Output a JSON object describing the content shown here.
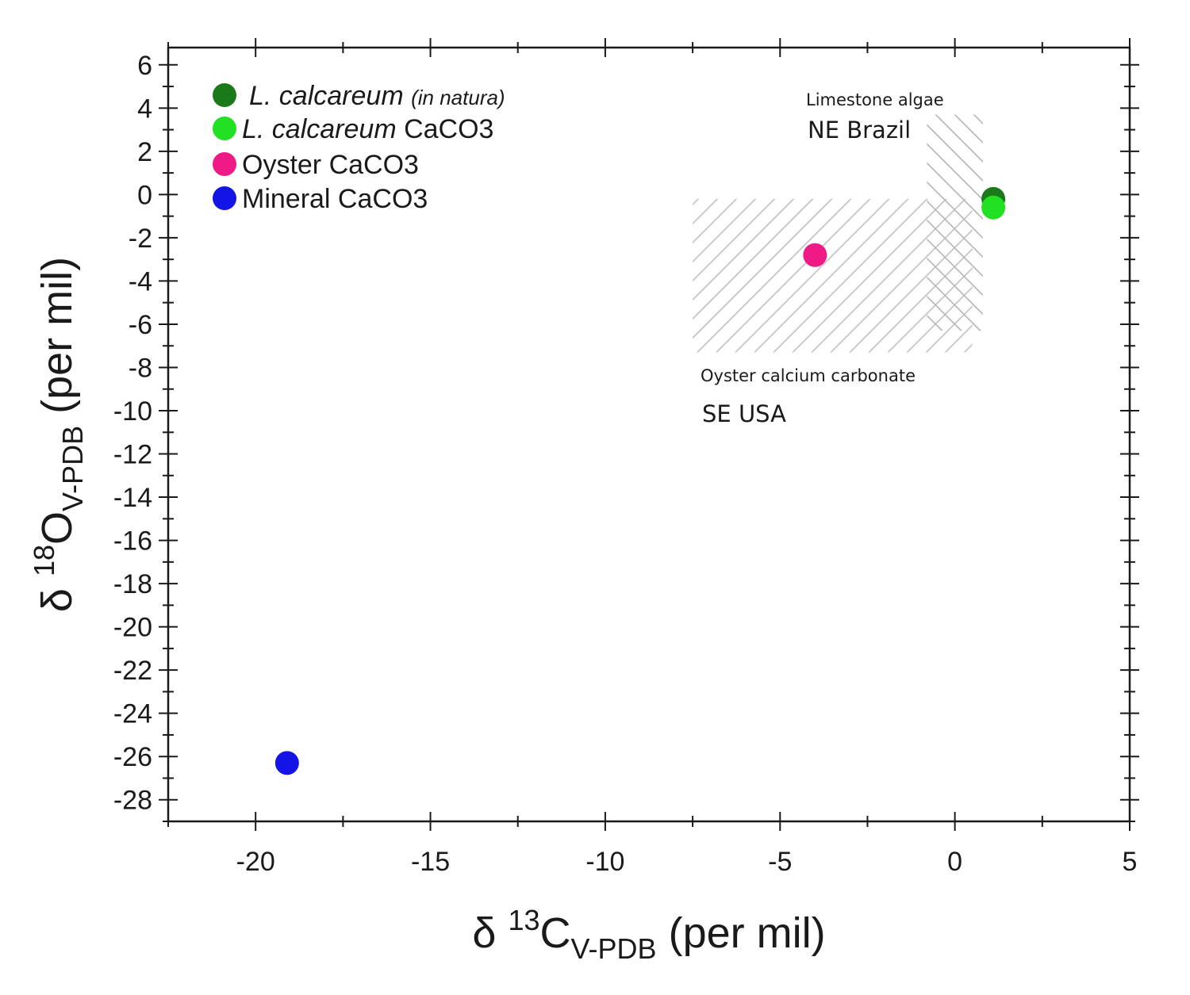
{
  "chart_data": {
    "type": "scatter",
    "xlabel": {
      "prefix": "δ ",
      "sup": "13",
      "main": "C",
      "sub": "V-PDB",
      "suffix": " (per mil)"
    },
    "ylabel": {
      "prefix": "δ ",
      "sup": "18",
      "main": "O",
      "sub": "V-PDB",
      "suffix": " (per mil)"
    },
    "xlim": [
      -22.5,
      5
    ],
    "ylim": [
      -29,
      6.8
    ],
    "x_ticks": [
      -20,
      -15,
      -10,
      -5,
      0,
      5
    ],
    "x_tick_labels": [
      "-20",
      "-15",
      "-10",
      "-5",
      "0",
      "5"
    ],
    "y_ticks": [
      6,
      4,
      2,
      0,
      -2,
      -4,
      -6,
      -8,
      -10,
      -12,
      -14,
      -16,
      -18,
      -20,
      -22,
      -24,
      -26,
      -28
    ],
    "y_tick_labels": [
      "6",
      "4",
      "2",
      "0",
      "-2",
      "-4",
      "-6",
      "-8",
      "-10",
      "-12",
      "-14",
      "-16",
      "-18",
      "-20",
      "-22",
      "-24",
      "-26",
      "-28"
    ],
    "grid": false,
    "legend_position": "top-left",
    "series": [
      {
        "name": "L. calcareum",
        "name_note": "(in natura)",
        "italic_name": true,
        "suffix": "",
        "color": "#1a7a1a",
        "points": [
          {
            "x": 1.1,
            "y": -0.2
          }
        ]
      },
      {
        "name": "L. calcareum",
        "name_note": "",
        "italic_name": true,
        "suffix": " CaCO3",
        "color": "#22e022",
        "points": [
          {
            "x": 1.1,
            "y": -0.6
          }
        ]
      },
      {
        "name": "Oyster CaCO3",
        "name_note": "",
        "italic_name": false,
        "suffix": "",
        "color": "#f01a86",
        "points": [
          {
            "x": -4.0,
            "y": -2.8
          }
        ]
      },
      {
        "name": "Mineral CaCO3",
        "name_note": "",
        "italic_name": false,
        "suffix": "",
        "color": "#1414e6",
        "points": [
          {
            "x": -19.1,
            "y": -26.3
          }
        ]
      }
    ],
    "regions": [
      {
        "name": "Limestone algae",
        "label_line1": "Limestone algae",
        "label_line2": "NE Brazil",
        "x_range": [
          -0.8,
          0.8
        ],
        "y_range": [
          -6.3,
          3.7
        ],
        "hatch": "diagonal-up"
      },
      {
        "name": "Oyster calcium carbonate",
        "label_line1": "Oyster calcium carbonate",
        "label_line2": "SE USA",
        "x_range": [
          -7.5,
          0.5
        ],
        "y_range": [
          -7.3,
          -0.2
        ],
        "hatch": "diagonal-down"
      }
    ],
    "colors": {
      "axis": "#1a1a1a",
      "hatch": "#bdbdbd"
    }
  }
}
